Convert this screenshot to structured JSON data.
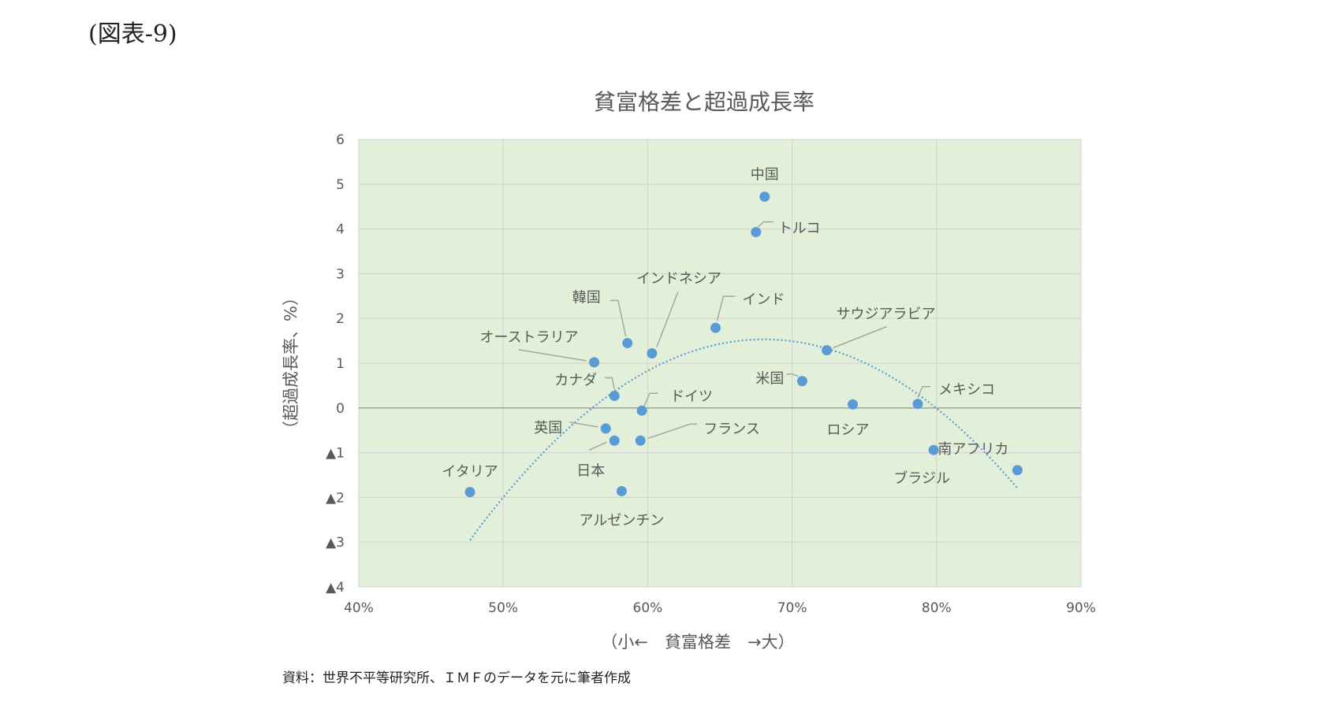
{
  "figure_label": "(図表-9)",
  "source_note": "資料：世界不平等研究所、ＩＭＦのデータを元に筆者作成",
  "chart_data": {
    "type": "scatter",
    "title": "貧富格差と超過成長率",
    "xlabel": "（小←　貧富格差　→大）",
    "ylabel": "（超過成長率、%）",
    "xlim": [
      0.4,
      0.9
    ],
    "ylim": [
      -4,
      6
    ],
    "x_ticks": [
      0.4,
      0.5,
      0.6,
      0.7,
      0.8,
      0.9
    ],
    "x_tick_labels": [
      "40%",
      "50%",
      "60%",
      "70%",
      "80%",
      "90%"
    ],
    "y_ticks": [
      6,
      5,
      4,
      3,
      2,
      1,
      0,
      -1,
      -2,
      -3,
      -4
    ],
    "y_tick_labels": [
      "6",
      "5",
      "4",
      "3",
      "2",
      "1",
      "0",
      "▲1",
      "▲2",
      "▲3",
      "▲4"
    ],
    "grid": true,
    "plot_background": "#e2efd9",
    "marker_color": "#5b9bd5",
    "trendline": {
      "kind": "polynomial-2",
      "style": "dotted",
      "color": "#5b9bd5",
      "x_range": [
        0.477,
        0.856
      ]
    },
    "points": [
      {
        "label": "中国",
        "x": 0.681,
        "y": 4.72
      },
      {
        "label": "トルコ",
        "x": 0.675,
        "y": 3.93
      },
      {
        "label": "インドネシア",
        "x": 0.603,
        "y": 1.22
      },
      {
        "label": "インド",
        "x": 0.647,
        "y": 1.79
      },
      {
        "label": "韓国",
        "x": 0.586,
        "y": 1.45
      },
      {
        "label": "サウジアラビア",
        "x": 0.724,
        "y": 1.29
      },
      {
        "label": "オーストラリア",
        "x": 0.563,
        "y": 1.02
      },
      {
        "label": "カナダ",
        "x": 0.577,
        "y": 0.27
      },
      {
        "label": "米国",
        "x": 0.707,
        "y": 0.6
      },
      {
        "label": "ドイツ",
        "x": 0.596,
        "y": -0.06
      },
      {
        "label": "ロシア",
        "x": 0.742,
        "y": 0.08
      },
      {
        "label": "メキシコ",
        "x": 0.787,
        "y": 0.09
      },
      {
        "label": "英国",
        "x": 0.571,
        "y": -0.46
      },
      {
        "label": "フランス",
        "x": 0.595,
        "y": -0.73
      },
      {
        "label": "日本",
        "x": 0.577,
        "y": -0.73
      },
      {
        "label": "ブラジル",
        "x": 0.798,
        "y": -0.94
      },
      {
        "label": "南アフリカ",
        "x": 0.856,
        "y": -1.39
      },
      {
        "label": "イタリア",
        "x": 0.477,
        "y": -1.88
      },
      {
        "label": "アルゼンチン",
        "x": 0.582,
        "y": -1.86
      }
    ]
  }
}
